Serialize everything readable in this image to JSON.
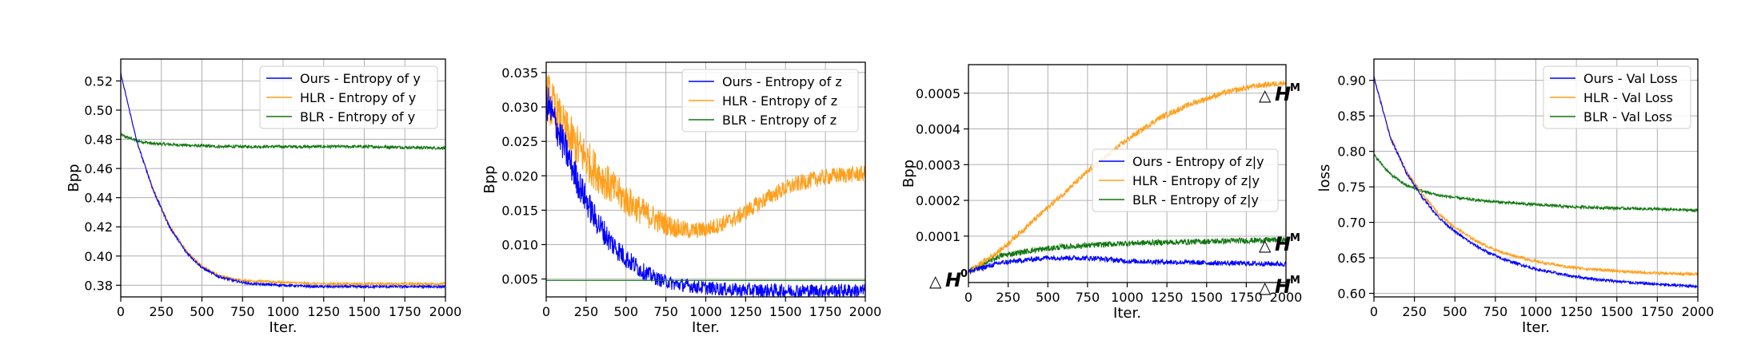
{
  "colors": {
    "ours": "#0000ff",
    "hlr": "#ff9f1c",
    "blr": "#117711",
    "grid": "#b0b0b0"
  },
  "chart_data": [
    {
      "type": "line",
      "xlabel": "Iter.",
      "ylabel": "Bpp",
      "xlim": [
        0,
        2000
      ],
      "ylim": [
        0.372,
        0.535
      ],
      "xticks": [
        "0",
        "250",
        "500",
        "750",
        "1000",
        "1250",
        "1500",
        "1750",
        "2000"
      ],
      "yticks": [
        "0.38",
        "0.40",
        "0.42",
        "0.44",
        "0.46",
        "0.48",
        "0.50",
        "0.52"
      ],
      "legend_position": "top-right",
      "grid": true,
      "series": [
        {
          "name": "Ours - Entropy of y",
          "color": "blue",
          "x": [
            0,
            100,
            200,
            300,
            400,
            500,
            600,
            700,
            800,
            1000,
            1200,
            1500,
            2000
          ],
          "y": [
            0.525,
            0.478,
            0.445,
            0.42,
            0.403,
            0.392,
            0.386,
            0.383,
            0.381,
            0.38,
            0.379,
            0.379,
            0.379
          ]
        },
        {
          "name": "HLR - Entropy of y",
          "color": "orange",
          "x": [
            0,
            100,
            200,
            300,
            400,
            500,
            600,
            700,
            800,
            1000,
            1200,
            1500,
            2000
          ],
          "y": [
            0.525,
            0.478,
            0.446,
            0.421,
            0.404,
            0.393,
            0.387,
            0.384,
            0.383,
            0.382,
            0.381,
            0.381,
            0.381
          ]
        },
        {
          "name": "BLR - Entropy of y",
          "color": "green",
          "x": [
            0,
            100,
            200,
            400,
            600,
            800,
            1000,
            1500,
            2000
          ],
          "y": [
            0.483,
            0.479,
            0.477,
            0.476,
            0.475,
            0.475,
            0.475,
            0.475,
            0.474
          ]
        }
      ]
    },
    {
      "type": "line",
      "xlabel": "Iter.",
      "ylabel": "Bpp",
      "xlim": [
        0,
        2000
      ],
      "ylim": [
        0.0024,
        0.0365
      ],
      "xticks": [
        "0",
        "250",
        "500",
        "750",
        "1000",
        "1250",
        "1500",
        "1750",
        "2000"
      ],
      "yticks": [
        "0.005",
        "0.010",
        "0.015",
        "0.020",
        "0.025",
        "0.030",
        "0.035"
      ],
      "legend_position": "top-right",
      "grid": true,
      "series": [
        {
          "name": "Ours - Entropy of z",
          "color": "blue",
          "x": [
            0,
            100,
            200,
            300,
            400,
            500,
            600,
            700,
            800,
            1000,
            1200,
            1500,
            2000
          ],
          "y": [
            0.031,
            0.025,
            0.019,
            0.014,
            0.0105,
            0.008,
            0.0062,
            0.005,
            0.0043,
            0.0037,
            0.0034,
            0.0033,
            0.0033
          ]
        },
        {
          "name": "HLR - Entropy of z",
          "color": "orange",
          "x": [
            0,
            100,
            200,
            300,
            400,
            500,
            600,
            700,
            800,
            900,
            1000,
            1100,
            1200,
            1300,
            1400,
            1500,
            1600,
            1700,
            1800,
            1900,
            2000
          ],
          "y": [
            0.032,
            0.027,
            0.024,
            0.021,
            0.0185,
            0.0165,
            0.0148,
            0.0135,
            0.0125,
            0.012,
            0.0122,
            0.013,
            0.014,
            0.0155,
            0.017,
            0.0182,
            0.019,
            0.0196,
            0.02,
            0.0202,
            0.0203
          ]
        },
        {
          "name": "BLR - Entropy of z",
          "color": "green",
          "x": [
            0,
            1000,
            2000
          ],
          "y": [
            0.0048,
            0.0048,
            0.0048
          ]
        }
      ]
    },
    {
      "type": "line",
      "xlabel": "Iter.",
      "ylabel": "Bpp",
      "xlim": [
        0,
        2000
      ],
      "ylim": [
        -3e-05,
        0.00058
      ],
      "xticks": [
        "0",
        "250",
        "500",
        "750",
        "1000",
        "1250",
        "1500",
        "1750",
        "2000"
      ],
      "yticks": [
        "0.0001",
        "0.0002",
        "0.0003",
        "0.0004",
        "0.0005"
      ],
      "legend_position": "center-right",
      "grid": true,
      "annotations": {
        "symbol": "△",
        "letter": "H",
        "upper": "M",
        "start": "0"
      },
      "series": [
        {
          "name": "Ours - Entropy of z|y",
          "color": "blue",
          "x": [
            0,
            200,
            500,
            800,
            1000,
            1500,
            2000
          ],
          "y": [
            0.0,
            2.5e-05,
            4e-05,
            3.8e-05,
            3e-05,
            2.5e-05,
            2.2e-05
          ]
        },
        {
          "name": "HLR - Entropy of z|y",
          "color": "orange",
          "x": [
            0,
            200,
            400,
            600,
            800,
            1000,
            1200,
            1400,
            1600,
            1800,
            2000
          ],
          "y": [
            0.0,
            6e-05,
            0.00014,
            0.00022,
            0.0003,
            0.00037,
            0.00043,
            0.00047,
            0.0005,
            0.00052,
            0.00053
          ]
        },
        {
          "name": "BLR - Entropy of z|y",
          "color": "green",
          "x": [
            0,
            200,
            400,
            600,
            800,
            1000,
            1500,
            2000
          ],
          "y": [
            0.0,
            4.5e-05,
            6e-05,
            7e-05,
            7.5e-05,
            8e-05,
            8.5e-05,
            9e-05
          ]
        }
      ]
    },
    {
      "type": "line",
      "xlabel": "Iter.",
      "ylabel": "loss",
      "xlim": [
        0,
        2000
      ],
      "ylim": [
        0.595,
        0.93
      ],
      "xticks": [
        "0",
        "250",
        "500",
        "750",
        "1000",
        "1250",
        "1500",
        "1750",
        "2000"
      ],
      "yticks": [
        "0.60",
        "0.65",
        "0.70",
        "0.75",
        "0.80",
        "0.85",
        "0.90"
      ],
      "legend_position": "top-right",
      "grid": true,
      "series": [
        {
          "name": "Ours - Val Loss",
          "color": "blue",
          "x": [
            0,
            100,
            200,
            300,
            400,
            500,
            600,
            700,
            800,
            1000,
            1200,
            1400,
            1600,
            1800,
            2000
          ],
          "y": [
            0.905,
            0.82,
            0.77,
            0.735,
            0.707,
            0.687,
            0.671,
            0.658,
            0.648,
            0.634,
            0.625,
            0.619,
            0.615,
            0.612,
            0.61
          ]
        },
        {
          "name": "HLR - Val Loss",
          "color": "orange",
          "x": [
            0,
            100,
            200,
            300,
            400,
            500,
            600,
            700,
            800,
            1000,
            1200,
            1400,
            1600,
            1800,
            2000
          ],
          "y": [
            0.905,
            0.822,
            0.772,
            0.739,
            0.712,
            0.693,
            0.678,
            0.666,
            0.657,
            0.645,
            0.637,
            0.633,
            0.63,
            0.628,
            0.627
          ]
        },
        {
          "name": "BLR - Val Loss",
          "color": "green",
          "x": [
            0,
            100,
            200,
            300,
            400,
            600,
            800,
            1000,
            1200,
            1500,
            2000
          ],
          "y": [
            0.795,
            0.768,
            0.752,
            0.744,
            0.738,
            0.732,
            0.728,
            0.725,
            0.722,
            0.72,
            0.717
          ]
        }
      ]
    }
  ]
}
